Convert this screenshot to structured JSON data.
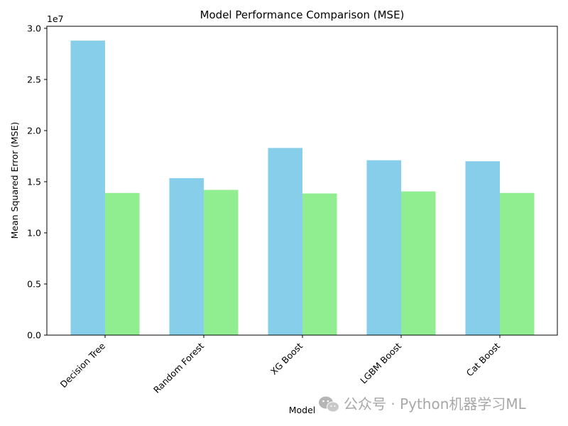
{
  "chart_data": {
    "type": "bar",
    "title": "Model Performance Comparison (MSE)",
    "xlabel": "Model",
    "ylabel": "Mean Squared Error (MSE)",
    "y_offset_label": "1e7",
    "categories": [
      "Decision Tree",
      "Random Forest",
      "XG Boost",
      "LGBM Boost",
      "Cat Boost"
    ],
    "series": [
      {
        "values": [
          28800000,
          15350000,
          18300000,
          17100000,
          17000000
        ],
        "color": "#87CEEB"
      },
      {
        "values": [
          13900000,
          14200000,
          13850000,
          14050000,
          13900000
        ],
        "color": "#90EE90"
      }
    ],
    "ylim": [
      0,
      30200000
    ],
    "yticks": [
      0,
      5000000,
      10000000,
      15000000,
      20000000,
      25000000,
      30000000
    ],
    "ytick_labels": [
      "0.0",
      "0.5",
      "1.0",
      "1.5",
      "2.0",
      "2.5",
      "3.0"
    ],
    "grid": false,
    "legend": "none"
  },
  "watermark": {
    "text": "公众号 · Python机器学习ML",
    "icon": "wechat-icon"
  }
}
